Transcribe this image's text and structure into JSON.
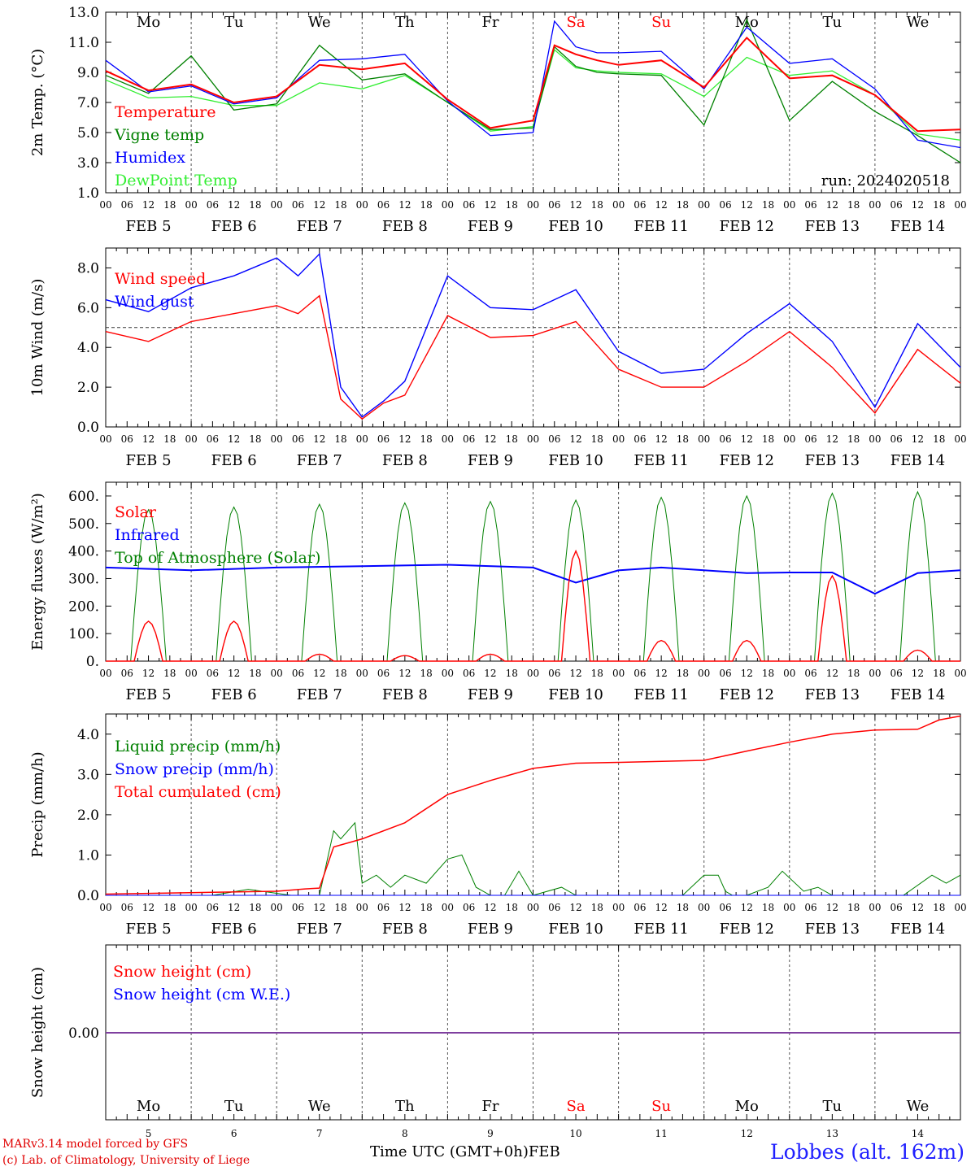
{
  "footer": {
    "credit_line1": "MARv3.14 model forced by GFS",
    "credit_line2": "(c) Lab. of Climatology, University of Liege",
    "x_title": "Time UTC (GMT+0h)",
    "x_month": "FEB",
    "station": "Lobbes (alt. 162m)"
  },
  "colors": {
    "red": "#ff0000",
    "green": "#008000",
    "blue": "#0000ff",
    "light_green": "#33ee33",
    "purple": "#7f3f9f"
  },
  "chart_data": [
    {
      "type": "line",
      "ylabel": "2m Temp. (°C)",
      "ylim": [
        1.0,
        13.0
      ],
      "y_ticks": [
        "1.0",
        "3.0",
        "5.0",
        "7.0",
        "9.0",
        "11.0",
        "13.0"
      ],
      "days": [
        "Mo",
        "Tu",
        "We",
        "Th",
        "Fr",
        "Sa",
        "Su",
        "Mo",
        "Tu",
        "We"
      ],
      "weekend_days": [
        5,
        6
      ],
      "hour_ticks": [
        "00",
        "06",
        "12",
        "18"
      ],
      "date_labels": [
        "FEB 5",
        "FEB 6",
        "FEB 7",
        "FEB 8",
        "FEB 9",
        "FEB 10",
        "FEB 11",
        "FEB 12",
        "FEB 13",
        "FEB 14"
      ],
      "run_label": "run: 2024020518",
      "x": [
        0,
        12,
        24,
        36,
        48,
        60,
        72,
        84,
        96,
        108,
        120,
        126,
        132,
        138,
        144,
        156,
        168,
        180,
        192,
        204,
        216,
        228,
        240
      ],
      "series": [
        {
          "name": "Temperature",
          "color": "red",
          "values": [
            9.1,
            7.8,
            8.2,
            7.0,
            7.4,
            9.5,
            9.2,
            9.6,
            7.2,
            5.3,
            5.8,
            10.8,
            10.2,
            9.8,
            9.5,
            9.8,
            8.0,
            11.3,
            8.6,
            8.8,
            7.5,
            5.1,
            5.2
          ]
        },
        {
          "name": "Vigne temp",
          "color": "green",
          "values": [
            8.8,
            7.6,
            10.1,
            6.5,
            6.9,
            10.8,
            8.5,
            8.9,
            7.0,
            5.2,
            5.3,
            10.7,
            9.4,
            9.0,
            8.9,
            8.8,
            5.5,
            12.5,
            5.8,
            8.4,
            6.4,
            4.8,
            3.0
          ]
        },
        {
          "name": "Humidex",
          "color": "blue",
          "values": [
            9.8,
            7.7,
            8.1,
            6.9,
            7.3,
            9.8,
            9.9,
            10.2,
            7.1,
            4.8,
            5.0,
            12.4,
            10.7,
            10.3,
            10.3,
            10.4,
            7.9,
            12.0,
            9.6,
            9.9,
            7.9,
            4.5,
            4.0
          ]
        },
        {
          "name": "DewPoint Temp",
          "color": "light_green",
          "values": [
            8.5,
            7.3,
            7.4,
            6.8,
            6.8,
            8.3,
            7.9,
            8.8,
            7.0,
            5.1,
            5.4,
            10.5,
            9.3,
            9.1,
            9.0,
            8.9,
            7.4,
            10.0,
            8.8,
            9.1,
            7.5,
            4.9,
            4.5
          ]
        }
      ]
    },
    {
      "type": "line",
      "ylabel": "10m Wind (m/s)",
      "ylim": [
        0.0,
        9.0
      ],
      "y_ticks": [
        "0.0",
        "2.0",
        "4.0",
        "6.0",
        "8.0"
      ],
      "reference_line": 5.0,
      "date_labels": [
        "FEB 5",
        "FEB 6",
        "FEB 7",
        "FEB 8",
        "FEB 9",
        "FEB 10",
        "FEB 11",
        "FEB 12",
        "FEB 13",
        "FEB 14"
      ],
      "hour_ticks": [
        "00",
        "06",
        "12",
        "18"
      ],
      "x": [
        0,
        12,
        24,
        36,
        48,
        54,
        60,
        66,
        72,
        78,
        84,
        96,
        108,
        120,
        132,
        144,
        156,
        168,
        180,
        192,
        204,
        216,
        228,
        240
      ],
      "series": [
        {
          "name": "Wind speed",
          "color": "red",
          "values": [
            4.8,
            4.3,
            5.3,
            5.7,
            6.1,
            5.7,
            6.6,
            1.4,
            0.4,
            1.2,
            1.6,
            5.6,
            4.5,
            4.6,
            5.3,
            2.9,
            2.0,
            2.0,
            3.3,
            4.8,
            3.0,
            0.7,
            3.9,
            2.2
          ]
        },
        {
          "name": "Wind gust",
          "color": "blue",
          "values": [
            6.4,
            5.8,
            7.0,
            7.6,
            8.5,
            7.6,
            8.7,
            2.0,
            0.5,
            1.3,
            2.3,
            7.6,
            6.0,
            5.9,
            6.9,
            3.8,
            2.7,
            2.9,
            4.7,
            6.2,
            4.3,
            1.0,
            5.2,
            3.0
          ]
        }
      ]
    },
    {
      "type": "line",
      "ylabel": "Energy fluxes (W/m²)",
      "ylim": [
        0,
        650
      ],
      "y_ticks": [
        "0.",
        "100.",
        "200.",
        "300.",
        "400.",
        "500.",
        "600."
      ],
      "date_labels": [
        "FEB 5",
        "FEB 6",
        "FEB 7",
        "FEB 8",
        "FEB 9",
        "FEB 10",
        "FEB 11",
        "FEB 12",
        "FEB 13",
        "FEB 14"
      ],
      "hour_ticks": [
        "00",
        "06",
        "12",
        "18"
      ],
      "solar_peaks": [
        145,
        145,
        25,
        20,
        25,
        400,
        75,
        75,
        310,
        40
      ],
      "toa_peaks": [
        550,
        560,
        570,
        575,
        580,
        585,
        595,
        600,
        610,
        615
      ],
      "infrared": {
        "x": [
          0,
          24,
          48,
          72,
          96,
          120,
          132,
          144,
          156,
          168,
          180,
          192,
          204,
          216,
          228,
          240
        ],
        "values": [
          340,
          330,
          340,
          345,
          350,
          340,
          285,
          330,
          340,
          330,
          320,
          322,
          322,
          245,
          320,
          330
        ]
      },
      "series_names": [
        "Solar",
        "Infrared",
        "Top of Atmosphere (Solar)"
      ]
    },
    {
      "type": "line",
      "ylabel": "Precip (mm/h)",
      "ylim": [
        0.0,
        4.5
      ],
      "y_ticks": [
        "0.0",
        "1.0",
        "2.0",
        "3.0",
        "4.0"
      ],
      "date_labels": [
        "FEB 5",
        "FEB 6",
        "FEB 7",
        "FEB 8",
        "FEB 9",
        "FEB 10",
        "FEB 11",
        "FEB 12",
        "FEB 13",
        "FEB 14"
      ],
      "hour_ticks": [
        "00",
        "06",
        "12",
        "18"
      ],
      "series": [
        {
          "name": "Liquid precip (mm/h)",
          "color": "green",
          "x": [
            0,
            30,
            40,
            48,
            52,
            56,
            60,
            64,
            66,
            70,
            72,
            76,
            80,
            84,
            90,
            96,
            100,
            104,
            108,
            112,
            116,
            120,
            128,
            132,
            138,
            144,
            152,
            162,
            168,
            172,
            174,
            176,
            180,
            186,
            190,
            196,
            200,
            204,
            210,
            216,
            224,
            232,
            236,
            240
          ],
          "values": [
            0,
            0,
            0.15,
            0.05,
            0,
            0,
            0,
            1.6,
            1.4,
            1.8,
            0.3,
            0.5,
            0.2,
            0.5,
            0.3,
            0.9,
            1.0,
            0.2,
            0,
            0,
            0.6,
            0,
            0.2,
            0,
            0,
            0,
            0,
            0,
            0.5,
            0.5,
            0.1,
            0,
            0,
            0.2,
            0.6,
            0.1,
            0.2,
            0,
            0,
            0,
            0,
            0.5,
            0.3,
            0.5
          ]
        },
        {
          "name": "Snow precip (mm/h)",
          "color": "blue",
          "x": [
            0,
            240
          ],
          "values": [
            0,
            0
          ]
        },
        {
          "name": "Total cumulated (cm)",
          "color": "red",
          "x": [
            0,
            48,
            56,
            60,
            64,
            72,
            84,
            96,
            108,
            120,
            132,
            144,
            168,
            180,
            192,
            204,
            216,
            228,
            234,
            240
          ],
          "values": [
            0.03,
            0.1,
            0.16,
            0.18,
            1.2,
            1.4,
            1.8,
            2.5,
            2.85,
            3.15,
            3.28,
            3.3,
            3.35,
            3.58,
            3.8,
            4.0,
            4.1,
            4.12,
            4.35,
            4.45
          ]
        }
      ]
    },
    {
      "type": "line",
      "ylabel": "Snow height (cm)",
      "y_ticks": [
        "0.00"
      ],
      "days": [
        "Mo",
        "Tu",
        "We",
        "Th",
        "Fr",
        "Sa",
        "Su",
        "Mo",
        "Tu",
        "We"
      ],
      "weekend_days": [
        5,
        6
      ],
      "day_numbers": [
        "5",
        "6",
        "7",
        "8",
        "9",
        "10",
        "11",
        "12",
        "13",
        "14"
      ],
      "series": [
        {
          "name": "Snow height (cm)",
          "color": "red",
          "x": [
            0,
            240
          ],
          "values": [
            0,
            0
          ]
        },
        {
          "name": "Snow height (cm W.E.)",
          "color": "blue",
          "x": [
            0,
            240
          ],
          "values": [
            0,
            0
          ]
        }
      ]
    }
  ]
}
